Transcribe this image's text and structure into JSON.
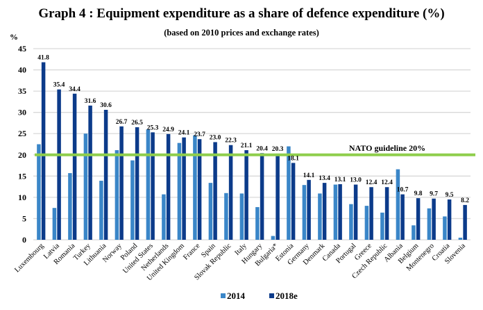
{
  "chart_data": {
    "type": "bar",
    "title": "Graph 4 : Equipment expenditure as a share of defence expenditure (%)",
    "subtitle": "(based on 2010 prices and exchange rates)",
    "ylabel": "%",
    "xlabel": "",
    "ylim": [
      0,
      45
    ],
    "yticks": [
      0,
      5,
      10,
      15,
      20,
      25,
      30,
      35,
      40,
      45
    ],
    "grid": true,
    "legend_position": "bottom",
    "categories": [
      "Luxembourg",
      "Latvia",
      "Romania",
      "Turkey",
      "Lithuania",
      "Norway",
      "Poland",
      "United States",
      "Netherlands",
      "United Kingdom",
      "France",
      "Spain",
      "Slovak Republic",
      "Italy",
      "Hungary",
      "Bulgaria*",
      "Estonia",
      "Germany",
      "Denmark",
      "Canada",
      "Portugal",
      "Greece",
      "Czech Republic",
      "Albania",
      "Belgium",
      "Montenegro",
      "Croatia",
      "Slovenia"
    ],
    "series": [
      {
        "name": "2014",
        "color": "#3a86c8",
        "labeled": false,
        "values": [
          22.5,
          7.5,
          15.7,
          25.0,
          13.9,
          21.1,
          18.7,
          26.0,
          10.7,
          22.8,
          24.6,
          13.4,
          11.0,
          10.9,
          7.7,
          0.9,
          22.0,
          12.9,
          10.9,
          13.0,
          8.4,
          8.0,
          6.4,
          16.6,
          3.4,
          7.4,
          5.5,
          0.5
        ]
      },
      {
        "name": "2018e",
        "color": "#0c3b8a",
        "labeled": true,
        "values": [
          41.8,
          35.4,
          34.4,
          31.6,
          30.6,
          26.7,
          26.5,
          25.3,
          24.9,
          24.1,
          23.7,
          23.0,
          22.3,
          21.1,
          20.4,
          20.3,
          18.1,
          14.1,
          13.4,
          13.1,
          13.0,
          12.4,
          12.4,
          10.7,
          9.8,
          9.7,
          9.5,
          8.2
        ],
        "data_labels": [
          "41.8",
          "35.4",
          "34.4",
          "31.6",
          "30.6",
          "26.7",
          "26.5",
          "25.3",
          "24.9",
          "24.1",
          "23.7",
          "23.0",
          "22.3",
          "21.1",
          "20.4",
          "20.3",
          "18.1",
          "14.1",
          "13.4",
          "13.1",
          "13.0",
          "12.4",
          "12.4",
          "10.7",
          "9.8",
          "9.7",
          "9.5",
          "8.2"
        ]
      }
    ],
    "reference_line": {
      "value": 20,
      "label": "NATO guideline 20%",
      "color": "#8fce4c"
    },
    "gridline_color": "#d9d9d9"
  }
}
